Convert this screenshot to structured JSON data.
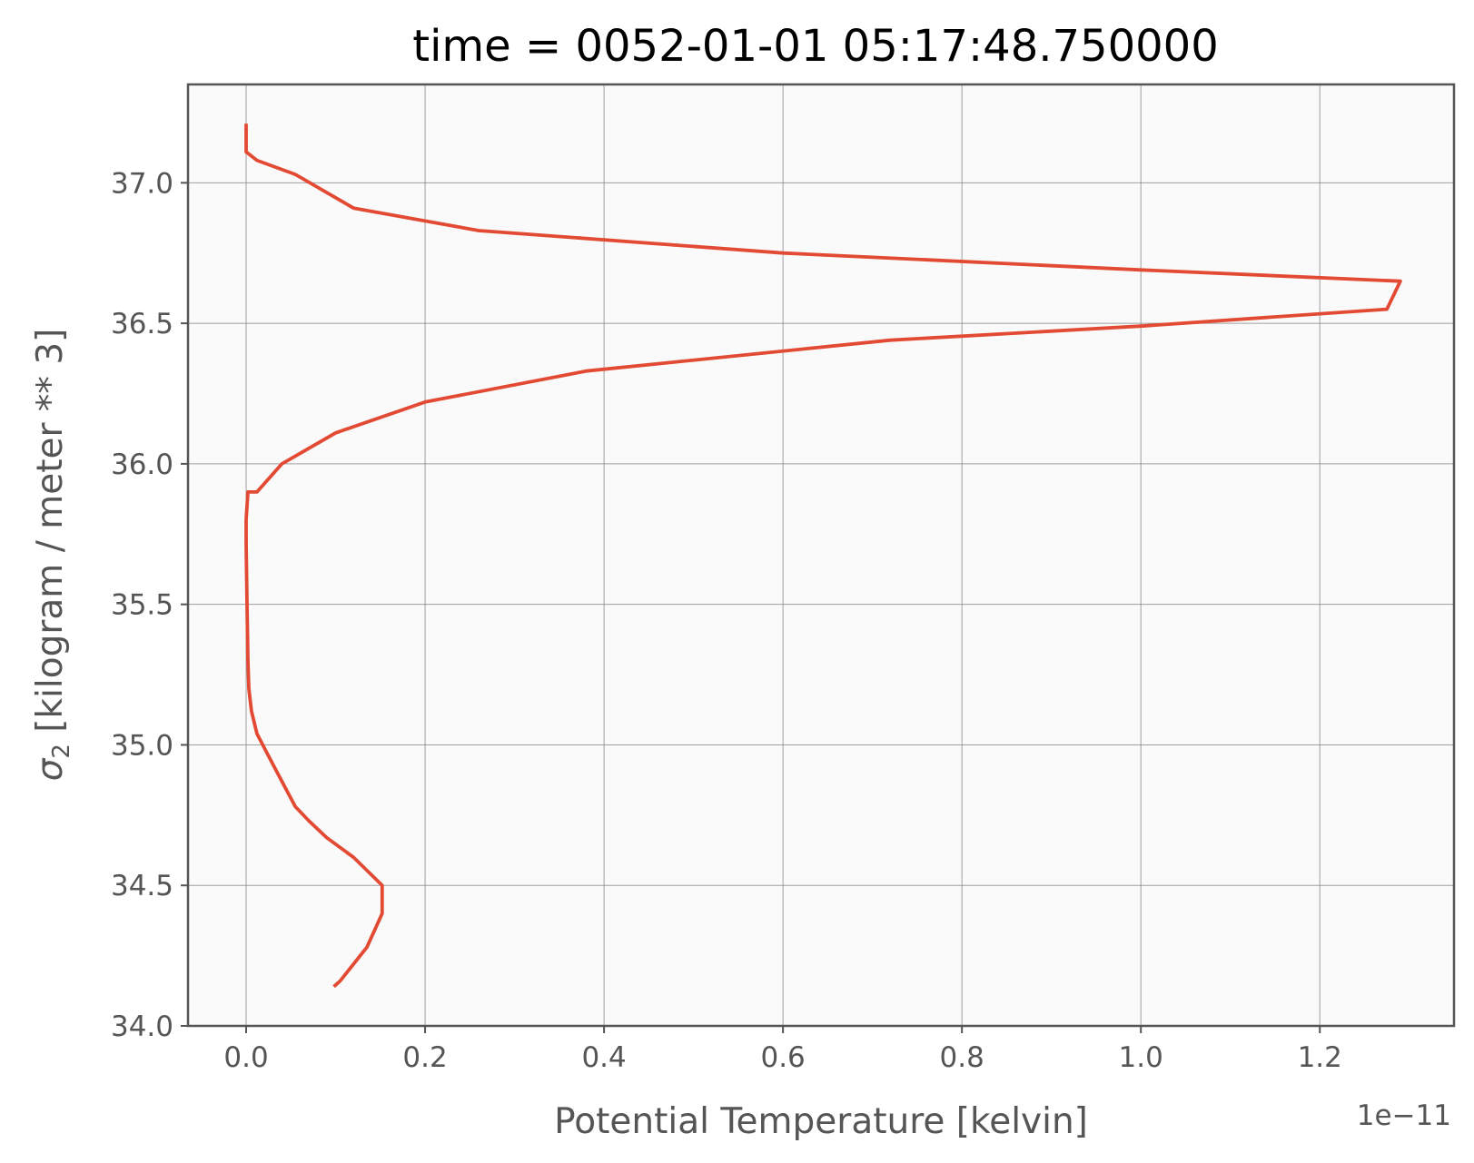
{
  "chart_data": {
    "type": "line",
    "title": "time = 0052-01-01 05:17:48.750000",
    "xlabel": "Potential Temperature [kelvin]",
    "ylabel_symbol": "σ",
    "ylabel_subscript": "2",
    "ylabel_rest": " [kilogram / meter ** 3]",
    "x_offset_text": "1e−11",
    "x_scale": 1e-11,
    "xlim": [
      -0.065,
      1.35
    ],
    "ylim": [
      34.0,
      37.35
    ],
    "xticks": [
      0.0,
      0.2,
      0.4,
      0.6,
      0.8,
      1.0,
      1.2
    ],
    "xtick_labels": [
      "0.0",
      "0.2",
      "0.4",
      "0.6",
      "0.8",
      "1.0",
      "1.2"
    ],
    "yticks": [
      34.0,
      34.5,
      35.0,
      35.5,
      36.0,
      36.5,
      37.0
    ],
    "ytick_labels": [
      "34.0",
      "34.5",
      "35.0",
      "35.5",
      "36.0",
      "36.5",
      "37.0"
    ],
    "grid": true,
    "colors": {
      "line": "#e24a33",
      "plot_background": "#fafafa",
      "grid": "#808080",
      "spine": "#555555"
    },
    "series": [
      {
        "x": [
          0.098,
          0.105,
          0.135,
          0.152,
          0.152,
          0.12,
          0.09,
          0.07,
          0.055,
          0.04,
          0.025,
          0.012,
          0.006,
          0.003,
          0.002,
          0.001,
          0.0,
          0.0,
          0.002,
          0.012,
          0.04,
          0.1,
          0.2,
          0.38,
          0.72,
          1.0,
          1.275,
          1.29,
          1.0,
          0.6,
          0.26,
          0.12,
          0.055,
          0.012,
          0.0,
          0.0
        ],
        "y": [
          34.14,
          34.16,
          34.28,
          34.4,
          34.5,
          34.6,
          34.67,
          34.73,
          34.78,
          34.87,
          34.96,
          35.04,
          35.12,
          35.2,
          35.3,
          35.5,
          35.72,
          35.8,
          35.9,
          35.9,
          36.0,
          36.11,
          36.22,
          36.33,
          36.44,
          36.49,
          36.55,
          36.65,
          36.69,
          36.75,
          36.83,
          36.91,
          37.03,
          37.08,
          37.11,
          37.21
        ]
      }
    ]
  }
}
